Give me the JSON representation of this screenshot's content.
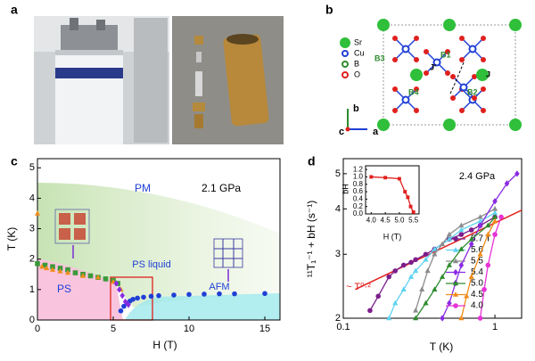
{
  "panel_labels": [
    "a",
    "b",
    "c",
    "d"
  ],
  "structure": {
    "legend": [
      "Sr",
      "Cu",
      "B",
      "O"
    ],
    "labels": [
      "B1",
      "B2",
      "B3",
      "B4",
      "J'",
      "J"
    ],
    "axes": [
      "b",
      "c",
      "a"
    ]
  },
  "chart_data": [
    {
      "type": "scatter",
      "xlabel": "H (T)",
      "ylabel": "T (K)",
      "annotations": [
        "PM",
        "2.1 GPa",
        "PS liquid",
        "PS",
        "AFM"
      ],
      "xlim": [
        0,
        16
      ],
      "ylim": [
        0,
        5.3
      ],
      "xticks": [
        0,
        5,
        10,
        15
      ],
      "yticks": [
        0,
        1,
        2,
        3,
        4,
        5
      ],
      "series": [
        {
          "color": "#1f3fd6",
          "marker": "circle",
          "x": [
            5.5,
            5.7,
            5.9,
            6.1,
            6.3,
            6.6,
            7,
            7.5,
            8,
            9,
            10,
            11,
            12,
            13,
            15
          ],
          "values": [
            0.3,
            0.45,
            0.55,
            0.62,
            0.68,
            0.72,
            0.75,
            0.78,
            0.8,
            0.82,
            0.84,
            0.85,
            0.86,
            0.86,
            0.87
          ]
        },
        {
          "color": "#3a9a3a",
          "marker": "square",
          "x": [
            0,
            0.5,
            1,
            1.5,
            2,
            2.5,
            3,
            3.5,
            4,
            4.5,
            5,
            5.3
          ],
          "values": [
            1.85,
            1.8,
            1.75,
            1.7,
            1.65,
            1.55,
            1.5,
            1.45,
            1.4,
            1.35,
            1.3,
            1.2
          ]
        },
        {
          "color": "#f08c1a",
          "marker": "triangle",
          "x": [
            0,
            0.3,
            0.6,
            1,
            1.5,
            2,
            3,
            4,
            5,
            5.5
          ],
          "values": [
            3.5,
            1.75,
            1.7,
            1.65,
            1.6,
            1.55,
            1.45,
            1.4,
            1.25,
            1.0
          ]
        },
        {
          "color": "#8a2be2",
          "marker": "diamond",
          "x": [
            5.2,
            5.4,
            5.6,
            5.8,
            6.0
          ],
          "values": [
            1.2,
            1.0,
            0.8,
            0.6,
            0.5
          ]
        }
      ]
    },
    {
      "type": "line",
      "xlabel": "T (K)",
      "ylabel": "¹¹T₁⁻¹ + bH (s⁻¹)",
      "annotations": [
        "2.4 GPa",
        "~ T⁰·²"
      ],
      "xscale": "log",
      "yscale": "log",
      "xlim": [
        0.1,
        1.5
      ],
      "ylim": [
        2,
        5.5
      ],
      "xticks": [
        0.1,
        1
      ],
      "yticks": [
        2,
        3,
        4,
        5
      ],
      "fit": {
        "color": "#e0201e",
        "x": [
          0.12,
          2
        ],
        "values": [
          2.4,
          4.2
        ]
      },
      "series": [
        {
          "name": "5.7 T",
          "color": "#7b1e8c",
          "marker": "circle",
          "x": [
            0.15,
            0.17,
            0.2,
            0.22,
            0.25,
            0.28,
            0.3,
            0.35,
            0.4,
            0.5,
            0.6,
            0.7,
            0.8,
            1.0
          ],
          "values": [
            2.1,
            2.3,
            2.6,
            2.7,
            2.8,
            2.85,
            2.9,
            3.0,
            3.1,
            3.3,
            3.4,
            3.5,
            3.6,
            3.8
          ]
        },
        {
          "name": "5.6",
          "color": "#5fd3f0",
          "marker": "triangle",
          "x": [
            0.2,
            0.22,
            0.25,
            0.28,
            0.3,
            0.35,
            0.4,
            0.5,
            0.6,
            0.8,
            1.0
          ],
          "values": [
            2.0,
            2.2,
            2.4,
            2.6,
            2.7,
            2.9,
            3.1,
            3.3,
            3.5,
            3.7,
            3.9
          ]
        },
        {
          "name": "5.5",
          "color": "#8c8c8c",
          "marker": "triangle",
          "x": [
            0.3,
            0.33,
            0.36,
            0.4,
            0.45,
            0.5,
            0.6,
            0.8,
            1.0
          ],
          "values": [
            2.1,
            2.4,
            2.7,
            3.0,
            3.2,
            3.4,
            3.6,
            3.8,
            4.0
          ]
        },
        {
          "name": "5.4",
          "color": "#8a2be2",
          "marker": "diamond",
          "x": [
            0.45,
            0.5,
            0.55,
            0.6,
            0.7,
            0.8,
            1.0,
            1.2,
            1.4
          ],
          "values": [
            2.0,
            2.2,
            2.5,
            2.8,
            3.2,
            3.6,
            4.2,
            4.7,
            5.0
          ]
        },
        {
          "name": "5.0",
          "color": "#2e8b2e",
          "marker": "triangle",
          "x": [
            0.3,
            0.35,
            0.4,
            0.45,
            0.5,
            0.6,
            0.7,
            0.9,
            1.0
          ],
          "values": [
            2.0,
            2.2,
            2.4,
            2.6,
            2.8,
            3.1,
            3.3,
            3.6,
            3.8
          ]
        },
        {
          "name": "4.5",
          "color": "#f08c1a",
          "marker": "triangle",
          "x": [
            0.6,
            0.65,
            0.7,
            0.8,
            0.9,
            1.0
          ],
          "values": [
            2.0,
            2.3,
            2.6,
            3.0,
            3.4,
            3.7
          ]
        },
        {
          "name": "4.0",
          "color": "#e632d6",
          "marker": "circle",
          "x": [
            0.8,
            0.85,
            0.9,
            1.0,
            1.1
          ],
          "values": [
            2.0,
            2.4,
            2.8,
            3.4,
            3.8
          ]
        }
      ]
    },
    {
      "type": "line",
      "xlabel": "H (T)",
      "ylabel": "bH",
      "xlim": [
        3.8,
        5.7
      ],
      "ylim": [
        0,
        1.3
      ],
      "xticks": [
        {
          "value": 4,
          "label": "4.0"
        },
        4.5,
        {
          "value": 5,
          "label": "5.0"
        },
        5.5
      ],
      "yticks": [
        {
          "value": 0,
          "label": "0.0"
        },
        0.2,
        0.4,
        0.6,
        0.8,
        {
          "value": 1,
          "label": "1.0"
        },
        1.2
      ],
      "series": [
        {
          "color": "#e0201e",
          "marker": "square",
          "x": [
            4.0,
            4.5,
            5.0,
            5.2,
            5.3,
            5.4,
            5.5
          ],
          "values": [
            1.0,
            0.98,
            0.95,
            0.6,
            0.45,
            0.2,
            0.05
          ]
        }
      ]
    }
  ]
}
